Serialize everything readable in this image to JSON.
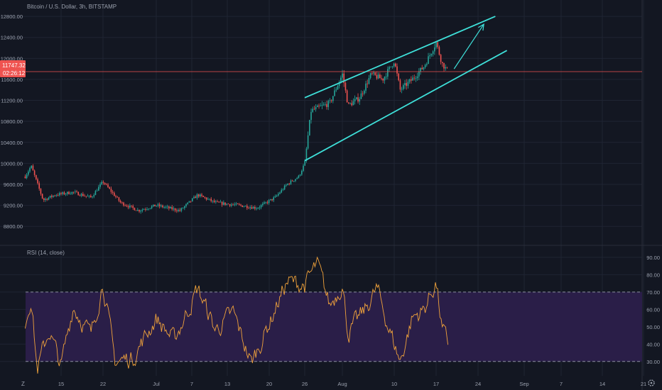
{
  "colors": {
    "background": "#131722",
    "grid": "#1f2433",
    "up": "#26a69a",
    "down": "#ef5350",
    "channel": "#3ee0d9",
    "rsi_line": "#f0a23b",
    "rsi_band": "#2a1e48",
    "text": "#9aa0ad",
    "price_label_bg": "#ef5350"
  },
  "legend": {
    "title": "Bitcoin / U.S. Dollar, 3h, BITSTAMP",
    "rsi_label": "RSI (14, close)"
  },
  "price_label": {
    "price": "11747.32",
    "countdown": "02:26:12"
  },
  "bottom_bar": {
    "left_icon_label": "Z",
    "right_icon": "gear-icon"
  },
  "chart_data": [
    {
      "type": "candlestick",
      "title": "Bitcoin / U.S. Dollar, 3h, BITSTAMP",
      "y_ticks": [
        "8800.00",
        "9200.00",
        "9600.00",
        "10000.00",
        "10400.00",
        "10800.00",
        "11200.00",
        "11600.00",
        "12000.00",
        "12400.00",
        "12800.00"
      ],
      "ylim": [
        8600,
        12950
      ],
      "x_ticks": [
        "15",
        "22",
        "Jul",
        "7",
        "13",
        "20",
        "26",
        "Aug",
        "10",
        "17",
        "24",
        "Sep",
        "7",
        "14",
        "21"
      ],
      "last_price": 11747.32,
      "grid": true,
      "approx_path": [
        {
          "x": "Jun 9",
          "close": 9750
        },
        {
          "x": "Jun 10",
          "close": 9950
        },
        {
          "x": "Jun 12",
          "close": 9300
        },
        {
          "x": "Jun 14",
          "close": 9400
        },
        {
          "x": "Jun 17",
          "close": 9450
        },
        {
          "x": "Jun 20",
          "close": 9350
        },
        {
          "x": "Jun 22",
          "close": 9650
        },
        {
          "x": "Jun 25",
          "close": 9250
        },
        {
          "x": "Jun 28",
          "close": 9100
        },
        {
          "x": "Jul 1",
          "close": 9200
        },
        {
          "x": "Jul 5",
          "close": 9100
        },
        {
          "x": "Jul 8",
          "close": 9400
        },
        {
          "x": "Jul 11",
          "close": 9250
        },
        {
          "x": "Jul 15",
          "close": 9200
        },
        {
          "x": "Jul 18",
          "close": 9150
        },
        {
          "x": "Jul 21",
          "close": 9350
        },
        {
          "x": "Jul 23",
          "close": 9600
        },
        {
          "x": "Jul 25",
          "close": 9750
        },
        {
          "x": "Jul 26",
          "close": 10000
        },
        {
          "x": "Jul 27",
          "close": 11000
        },
        {
          "x": "Jul 28",
          "close": 11050
        },
        {
          "x": "Jul 30",
          "close": 11150
        },
        {
          "x": "Aug 1",
          "close": 11700
        },
        {
          "x": "Aug 2",
          "close": 11100
        },
        {
          "x": "Aug 4",
          "close": 11250
        },
        {
          "x": "Aug 6",
          "close": 11700
        },
        {
          "x": "Aug 8",
          "close": 11600
        },
        {
          "x": "Aug 10",
          "close": 11950
        },
        {
          "x": "Aug 11",
          "close": 11400
        },
        {
          "x": "Aug 13",
          "close": 11600
        },
        {
          "x": "Aug 15",
          "close": 11850
        },
        {
          "x": "Aug 17",
          "close": 12300
        },
        {
          "x": "Aug 18",
          "close": 11900
        },
        {
          "x": "Aug 19",
          "close": 11747.32
        }
      ],
      "annotations": [
        {
          "type": "parallel-channel-upper",
          "from": {
            "x": "Jul 26",
            "price": 11250
          },
          "to": {
            "x": "Aug 27",
            "price": 12800
          }
        },
        {
          "type": "parallel-channel-lower",
          "from": {
            "x": "Jul 26",
            "price": 10050
          },
          "to": {
            "x": "Aug 29",
            "price": 12150
          }
        },
        {
          "type": "arrow",
          "from": {
            "x": "Aug 20",
            "price": 11800
          },
          "to": {
            "x": "Aug 25",
            "price": 12650
          }
        }
      ]
    },
    {
      "type": "line",
      "title": "RSI (14, close)",
      "y_ticks": [
        "30.00",
        "40.00",
        "50.00",
        "60.00",
        "70.00",
        "80.00",
        "90.00"
      ],
      "ylim": [
        25,
        92
      ],
      "bands": {
        "upper": 70,
        "lower": 30
      },
      "approx_values": [
        {
          "x": "Jun 9",
          "rsi": 52
        },
        {
          "x": "Jun 10",
          "rsi": 68
        },
        {
          "x": "Jun 11",
          "rsi": 25
        },
        {
          "x": "Jun 13",
          "rsi": 48
        },
        {
          "x": "Jun 15",
          "rsi": 27
        },
        {
          "x": "Jun 17",
          "rsi": 62
        },
        {
          "x": "Jun 20",
          "rsi": 45
        },
        {
          "x": "Jun 22",
          "rsi": 76
        },
        {
          "x": "Jun 24",
          "rsi": 30
        },
        {
          "x": "Jun 27",
          "rsi": 32
        },
        {
          "x": "Jul 1",
          "rsi": 55
        },
        {
          "x": "Jul 4",
          "rsi": 42
        },
        {
          "x": "Jul 8",
          "rsi": 72
        },
        {
          "x": "Jul 11",
          "rsi": 48
        },
        {
          "x": "Jul 14",
          "rsi": 58
        },
        {
          "x": "Jul 17",
          "rsi": 29
        },
        {
          "x": "Jul 20",
          "rsi": 52
        },
        {
          "x": "Jul 23",
          "rsi": 76
        },
        {
          "x": "Jul 26",
          "rsi": 74
        },
        {
          "x": "Jul 28",
          "rsi": 86
        },
        {
          "x": "Jul 30",
          "rsi": 62
        },
        {
          "x": "Aug 1",
          "rsi": 75
        },
        {
          "x": "Aug 2",
          "rsi": 46
        },
        {
          "x": "Aug 5",
          "rsi": 60
        },
        {
          "x": "Aug 7",
          "rsi": 72
        },
        {
          "x": "Aug 9",
          "rsi": 50
        },
        {
          "x": "Aug 11",
          "rsi": 30
        },
        {
          "x": "Aug 13",
          "rsi": 55
        },
        {
          "x": "Aug 15",
          "rsi": 60
        },
        {
          "x": "Aug 17",
          "rsi": 76
        },
        {
          "x": "Aug 18",
          "rsi": 48
        },
        {
          "x": "Aug 19",
          "rsi": 40
        }
      ]
    }
  ]
}
